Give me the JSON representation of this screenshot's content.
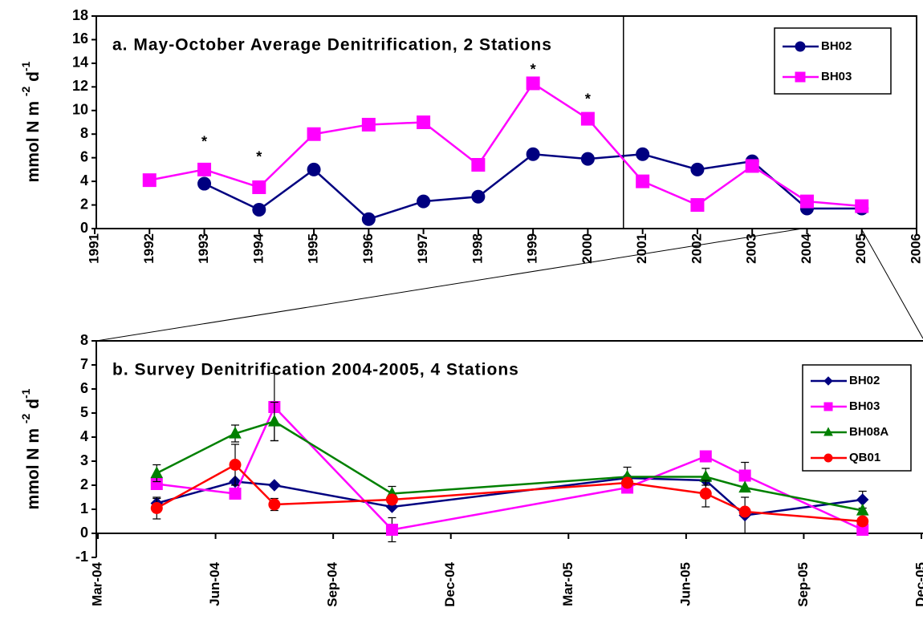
{
  "chart_data": [
    {
      "type": "line",
      "title": "a. May-October Average Denitrification, 2 Stations",
      "ylabel": [
        "mmol N m ",
        "-2",
        " d",
        "-1"
      ],
      "x": [
        1992,
        1993,
        1994,
        1995,
        1996,
        1997,
        1998,
        1999,
        2000,
        2001,
        2002,
        2003,
        2004,
        2005
      ],
      "series": [
        {
          "name": "BH02",
          "color": "#000080",
          "marker": "circle",
          "values": [
            null,
            3.8,
            1.6,
            5.0,
            0.8,
            2.3,
            2.7,
            6.3,
            5.9,
            6.3,
            5.0,
            5.7,
            1.7,
            1.7
          ]
        },
        {
          "name": "BH03",
          "color": "#ff00ff",
          "marker": "square",
          "values": [
            4.1,
            5.0,
            3.5,
            8.0,
            8.8,
            9.0,
            5.4,
            12.3,
            9.3,
            4.0,
            2.0,
            5.3,
            2.3,
            1.9
          ]
        }
      ],
      "annotations": [
        {
          "text": "*",
          "x": 1993,
          "y": 7.3
        },
        {
          "text": "*",
          "x": 1994,
          "y": 6.0
        },
        {
          "text": "*",
          "x": 1999,
          "y": 13.4
        },
        {
          "text": "*",
          "x": 2000,
          "y": 10.9
        }
      ],
      "reference_line_x": 2000.65,
      "xlim": [
        1991,
        2006
      ],
      "xticks": [
        1991,
        1992,
        1993,
        1994,
        1995,
        1996,
        1997,
        1998,
        1999,
        2000,
        2001,
        2002,
        2003,
        2004,
        2005,
        2006
      ],
      "ylim": [
        0,
        18
      ],
      "yticks": [
        0,
        2,
        4,
        6,
        8,
        10,
        12,
        14,
        16,
        18
      ],
      "legend": "upper right"
    },
    {
      "type": "line",
      "title": "b. Survey Denitrification 2004-2005, 4 Stations",
      "ylabel": [
        "mmol N m ",
        "-2",
        " d",
        "-1"
      ],
      "x": [
        "2004-04",
        "2004-06",
        "2004-07",
        "2004-10",
        "2005-04",
        "2005-06",
        "2005-07",
        "2005-10"
      ],
      "series": [
        {
          "name": "BH02",
          "color": "#000080",
          "marker": "diamond",
          "values": [
            1.25,
            2.15,
            2.0,
            1.1,
            2.3,
            2.2,
            0.75,
            1.4
          ],
          "errors": [
            0.2,
            null,
            null,
            null,
            null,
            null,
            0.75,
            0.35
          ]
        },
        {
          "name": "BH03",
          "color": "#ff00ff",
          "marker": "square",
          "values": [
            2.05,
            1.65,
            5.25,
            0.15,
            1.9,
            3.2,
            2.4,
            0.15
          ],
          "errors": [
            null,
            null,
            1.4,
            0.5,
            null,
            null,
            0.55,
            null
          ]
        },
        {
          "name": "BH08A",
          "color": "#008000",
          "marker": "triangle",
          "values": [
            2.5,
            4.15,
            4.65,
            1.65,
            2.35,
            2.35,
            1.9,
            0.95
          ],
          "errors": [
            0.35,
            0.35,
            0.8,
            0.3,
            0.4,
            0.35,
            null,
            null
          ]
        },
        {
          "name": "QB01",
          "color": "#ff0000",
          "marker": "circle",
          "values": [
            1.05,
            2.85,
            1.2,
            1.4,
            2.1,
            1.65,
            0.9,
            0.5
          ],
          "errors": [
            0.45,
            0.85,
            0.25,
            null,
            null,
            0.55,
            null,
            null
          ]
        }
      ],
      "xlim": [
        "2004-03",
        "2005-12"
      ],
      "xticks": [
        {
          "value": "2004-03",
          "label": "Mar-04"
        },
        {
          "value": "2004-06",
          "label": "Jun-04"
        },
        {
          "value": "2004-09",
          "label": "Sep-04"
        },
        {
          "value": "2004-12",
          "label": "Dec-04"
        },
        {
          "value": "2005-03",
          "label": "Mar-05"
        },
        {
          "value": "2005-06",
          "label": "Jun-05"
        },
        {
          "value": "2005-09",
          "label": "Sep-05"
        },
        {
          "value": "2005-12",
          "label": "Dec-05"
        }
      ],
      "ylim": [
        -1,
        8
      ],
      "yticks": [
        -1,
        0,
        1,
        2,
        3,
        4,
        5,
        6,
        7,
        8
      ],
      "legend": "upper right"
    }
  ]
}
